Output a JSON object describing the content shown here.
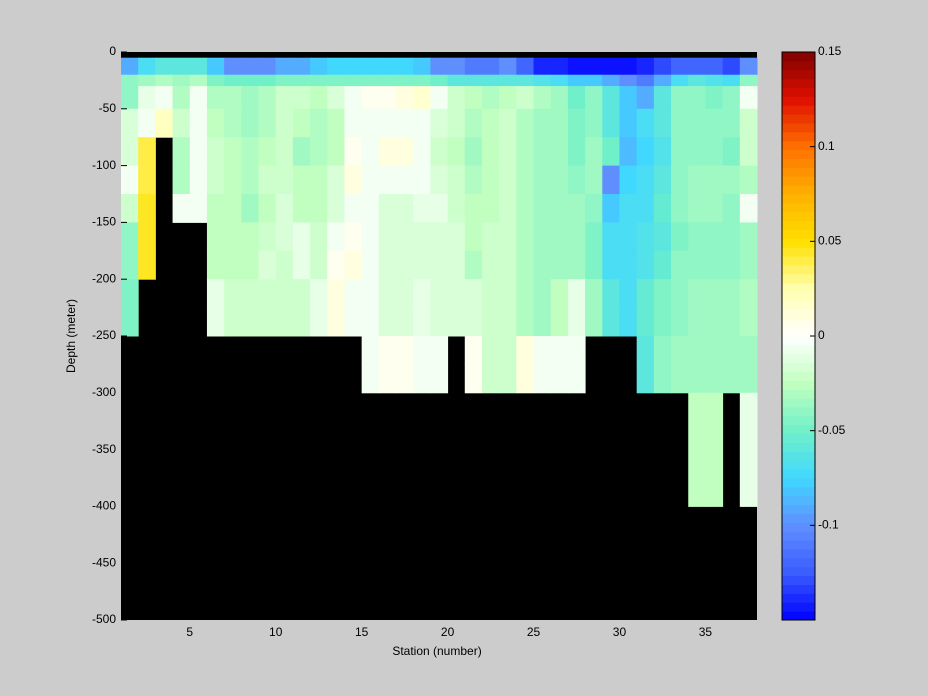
{
  "chart_data": {
    "type": "heatmap",
    "xlabel": "Station (number)",
    "ylabel": "Depth (meter)",
    "xlim": [
      1,
      38
    ],
    "ylim": [
      -500,
      0
    ],
    "xticks": [
      5,
      10,
      15,
      20,
      25,
      30,
      35
    ],
    "yticks": [
      -500,
      -450,
      -400,
      -350,
      -300,
      -250,
      -200,
      -150,
      -100,
      -50,
      0
    ],
    "x_edges": [
      1,
      2,
      3,
      4,
      5,
      6,
      7,
      8,
      9,
      10,
      11,
      12,
      13,
      14,
      15,
      16,
      17,
      18,
      19,
      20,
      21,
      22,
      23,
      24,
      25,
      26,
      27,
      28,
      29,
      30,
      31,
      32,
      33,
      34,
      35,
      36,
      37,
      38
    ],
    "y_edges": [
      -5,
      -20,
      -30,
      -50,
      -75,
      -100,
      -125,
      -150,
      -175,
      -200,
      -225,
      -250,
      -275,
      -300,
      -400
    ],
    "z": [
      [
        -0.09,
        -0.07,
        -0.06,
        -0.06,
        -0.06,
        -0.08,
        -0.1,
        -0.1,
        -0.1,
        -0.09,
        -0.09,
        -0.08,
        -0.075,
        -0.075,
        -0.075,
        -0.075,
        -0.075,
        -0.08,
        -0.1,
        -0.1,
        -0.11,
        -0.11,
        -0.1,
        -0.12,
        -0.14,
        -0.14,
        -0.145,
        -0.145,
        -0.145,
        -0.145,
        -0.14,
        -0.13,
        -0.12,
        -0.12,
        -0.12,
        -0.13,
        -0.1
      ],
      [
        -0.04,
        -0.035,
        -0.03,
        -0.035,
        -0.03,
        -0.045,
        -0.05,
        -0.05,
        -0.05,
        -0.045,
        -0.045,
        -0.045,
        -0.045,
        -0.045,
        -0.045,
        -0.045,
        -0.045,
        -0.045,
        -0.05,
        -0.06,
        -0.06,
        -0.06,
        -0.06,
        -0.06,
        -0.065,
        -0.07,
        -0.08,
        -0.08,
        -0.09,
        -0.1,
        -0.11,
        -0.09,
        -0.07,
        -0.06,
        -0.065,
        -0.07,
        -0.04
      ],
      [
        -0.04,
        -0.01,
        -0.005,
        -0.03,
        -0.005,
        -0.03,
        -0.03,
        -0.035,
        -0.03,
        -0.02,
        -0.02,
        -0.025,
        -0.015,
        -0.005,
        0.005,
        0.005,
        0.01,
        0.015,
        -0.005,
        -0.02,
        -0.025,
        -0.03,
        -0.025,
        -0.02,
        -0.03,
        -0.035,
        -0.05,
        -0.04,
        -0.06,
        -0.08,
        -0.09,
        -0.06,
        -0.04,
        -0.04,
        -0.045,
        -0.04,
        -0.005
      ],
      [
        -0.015,
        -0.005,
        0.02,
        -0.02,
        -0.005,
        -0.025,
        -0.03,
        -0.035,
        -0.03,
        -0.02,
        -0.025,
        -0.03,
        -0.025,
        -0.005,
        -0.005,
        -0.005,
        -0.005,
        -0.005,
        -0.015,
        -0.02,
        -0.03,
        -0.025,
        -0.02,
        -0.03,
        -0.035,
        -0.035,
        -0.045,
        -0.04,
        -0.06,
        -0.08,
        -0.07,
        -0.06,
        -0.04,
        -0.04,
        -0.04,
        -0.04,
        -0.02
      ],
      [
        -0.015,
        0.04,
        null,
        -0.03,
        -0.005,
        -0.02,
        -0.025,
        -0.03,
        -0.025,
        -0.02,
        -0.035,
        -0.03,
        -0.025,
        0.005,
        -0.005,
        0.01,
        0.01,
        -0.005,
        -0.02,
        -0.025,
        -0.035,
        -0.025,
        -0.02,
        -0.03,
        -0.035,
        -0.035,
        -0.045,
        -0.035,
        -0.05,
        -0.085,
        -0.075,
        -0.065,
        -0.04,
        -0.04,
        -0.04,
        -0.045,
        -0.02
      ],
      [
        -0.005,
        0.04,
        null,
        -0.03,
        -0.005,
        -0.02,
        -0.025,
        -0.03,
        -0.02,
        -0.02,
        -0.025,
        -0.025,
        -0.015,
        0.01,
        -0.005,
        -0.005,
        -0.005,
        -0.005,
        -0.015,
        -0.02,
        -0.03,
        -0.025,
        -0.02,
        -0.03,
        -0.035,
        -0.035,
        -0.04,
        -0.035,
        -0.1,
        -0.075,
        -0.07,
        -0.06,
        -0.04,
        -0.035,
        -0.035,
        -0.035,
        -0.03
      ],
      [
        -0.02,
        0.045,
        null,
        -0.005,
        -0.005,
        -0.025,
        -0.025,
        -0.035,
        -0.025,
        -0.015,
        -0.025,
        -0.025,
        -0.015,
        -0.005,
        -0.005,
        -0.015,
        -0.015,
        -0.01,
        -0.01,
        -0.02,
        -0.025,
        -0.025,
        -0.02,
        -0.03,
        -0.035,
        -0.035,
        -0.035,
        -0.04,
        -0.08,
        -0.07,
        -0.07,
        -0.055,
        -0.04,
        -0.035,
        -0.035,
        -0.04,
        -0.005
      ],
      [
        -0.04,
        0.045,
        null,
        null,
        null,
        -0.025,
        -0.025,
        -0.025,
        -0.02,
        -0.015,
        -0.01,
        -0.02,
        -0.005,
        0.005,
        -0.005,
        -0.015,
        -0.015,
        -0.015,
        -0.015,
        -0.015,
        -0.025,
        -0.02,
        -0.02,
        -0.03,
        -0.035,
        -0.035,
        -0.035,
        -0.045,
        -0.07,
        -0.07,
        -0.065,
        -0.06,
        -0.045,
        -0.04,
        -0.04,
        -0.04,
        -0.035
      ],
      [
        -0.04,
        0.045,
        null,
        null,
        null,
        -0.025,
        -0.025,
        -0.025,
        -0.015,
        -0.02,
        -0.01,
        -0.02,
        0.005,
        0.01,
        -0.005,
        -0.015,
        -0.015,
        -0.015,
        -0.015,
        -0.015,
        -0.03,
        -0.02,
        -0.02,
        -0.03,
        -0.035,
        -0.035,
        -0.035,
        -0.045,
        -0.07,
        -0.07,
        -0.065,
        -0.055,
        -0.04,
        -0.04,
        -0.04,
        -0.04,
        -0.035
      ],
      [
        -0.045,
        null,
        null,
        null,
        null,
        -0.01,
        -0.02,
        -0.02,
        -0.02,
        -0.02,
        -0.02,
        -0.01,
        0.01,
        -0.005,
        -0.005,
        -0.015,
        -0.015,
        -0.01,
        -0.015,
        -0.015,
        -0.015,
        -0.02,
        -0.02,
        -0.03,
        -0.035,
        -0.025,
        -0.01,
        -0.035,
        -0.06,
        -0.07,
        -0.055,
        -0.045,
        -0.04,
        -0.035,
        -0.035,
        -0.035,
        -0.03
      ],
      [
        -0.045,
        null,
        null,
        null,
        null,
        -0.01,
        -0.02,
        -0.02,
        -0.02,
        -0.02,
        -0.02,
        -0.01,
        0.01,
        -0.005,
        -0.005,
        -0.015,
        -0.015,
        -0.01,
        -0.015,
        -0.015,
        -0.015,
        -0.02,
        -0.02,
        -0.03,
        -0.035,
        -0.025,
        -0.01,
        -0.035,
        -0.06,
        -0.07,
        -0.055,
        -0.045,
        -0.04,
        -0.035,
        -0.035,
        -0.035,
        -0.03
      ],
      [
        null,
        null,
        null,
        null,
        null,
        null,
        null,
        null,
        null,
        null,
        null,
        null,
        null,
        null,
        -0.005,
        0.005,
        0.005,
        -0.005,
        -0.005,
        null,
        0.005,
        -0.02,
        -0.02,
        0.01,
        -0.005,
        -0.005,
        -0.005,
        null,
        null,
        null,
        -0.06,
        -0.04,
        -0.035,
        -0.035,
        -0.035,
        -0.035,
        -0.035
      ],
      [
        null,
        null,
        null,
        null,
        null,
        null,
        null,
        null,
        null,
        null,
        null,
        null,
        null,
        null,
        -0.005,
        0.005,
        0.005,
        -0.005,
        -0.005,
        null,
        0.005,
        -0.02,
        -0.02,
        0.01,
        -0.005,
        -0.005,
        -0.005,
        null,
        null,
        null,
        -0.06,
        -0.04,
        -0.035,
        -0.035,
        -0.035,
        -0.035,
        -0.035
      ],
      [
        null,
        null,
        null,
        null,
        null,
        null,
        null,
        null,
        null,
        null,
        null,
        null,
        null,
        null,
        null,
        null,
        null,
        null,
        null,
        null,
        null,
        null,
        null,
        null,
        null,
        null,
        null,
        null,
        null,
        null,
        null,
        null,
        null,
        -0.025,
        -0.025,
        null,
        -0.01
      ]
    ],
    "clim": [
      -0.15,
      0.15
    ],
    "cticks": [
      -0.1,
      -0.05,
      0,
      0.05,
      0.1,
      0.15
    ],
    "colormap": [
      "#0000ff",
      "#3a5cff",
      "#5f8fff",
      "#40d8ff",
      "#70f0c8",
      "#c0ffc0",
      "#ffffff",
      "#ffffb0",
      "#ffe000",
      "#ffb000",
      "#ff7000",
      "#e01000",
      "#800000"
    ],
    "missing_color": "#000000",
    "background": "#cccccc"
  }
}
